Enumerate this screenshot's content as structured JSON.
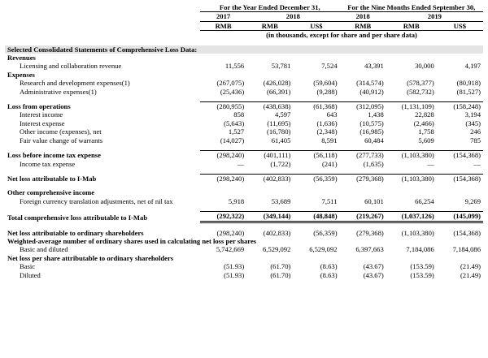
{
  "header": {
    "periods": [
      {
        "title": "For the Year Ended December 31,",
        "years": [
          "2017",
          "2018"
        ],
        "currencies": [
          "RMB",
          "RMB",
          "US$"
        ]
      },
      {
        "title": "For the Nine Months Ended September 30,",
        "years": [
          "2018",
          "2019"
        ],
        "currencies": [
          "RMB",
          "RMB",
          "US$"
        ]
      }
    ],
    "note": "(in thousands, except for share and per share data)"
  },
  "table": {
    "rows": [
      {
        "label": "Selected Consolidated Statements of Comprehensive Loss Data:"
      },
      {
        "label": "Revenues"
      },
      {
        "label": "Licensing and collaboration revenue",
        "values": [
          "11,556",
          "53,781",
          "7,524",
          "43,391",
          "30,000",
          "4,197"
        ]
      },
      {
        "label": "Expenses"
      },
      {
        "label": "Research and development expenses(1)",
        "values": [
          "(267,075)",
          "(426,028)",
          "(59,604)",
          "(314,574)",
          "(578,377)",
          "(80,918)"
        ]
      },
      {
        "label": "Administrative expenses(1)",
        "values": [
          "(25,436)",
          "(66,391)",
          "(9,288)",
          "(40,912)",
          "(582,732)",
          "(81,527)"
        ]
      },
      {
        "label": "Loss from operations",
        "values": [
          "(280,955)",
          "(438,638)",
          "(61,368)",
          "(312,095)",
          "(1,131,109)",
          "(158,248)"
        ]
      },
      {
        "label": "Interest income",
        "values": [
          "858",
          "4,597",
          "643",
          "1,438",
          "22,828",
          "3,194"
        ]
      },
      {
        "label": "Interest expense",
        "values": [
          "(5,643)",
          "(11,695)",
          "(1,636)",
          "(10,575)",
          "(2,466)",
          "(345)"
        ]
      },
      {
        "label": "Other income (expenses), net",
        "values": [
          "1,527",
          "(16,780)",
          "(2,348)",
          "(16,985)",
          "1,758",
          "246"
        ]
      },
      {
        "label": "Fair value change of warrants",
        "values": [
          "(14,027)",
          "61,405",
          "8,591",
          "60,484",
          "5,609",
          "785"
        ]
      },
      {
        "label": "Loss before income tax expense",
        "values": [
          "(298,240)",
          "(401,111)",
          "(56,118)",
          "(277,733)",
          "(1,103,380)",
          "(154,368)"
        ]
      },
      {
        "label": "Income tax expense",
        "values": [
          "—",
          "(1,722)",
          "(241)",
          "(1,635)",
          "—",
          "—"
        ]
      },
      {
        "label": "Net loss attributable to I-Mab",
        "values": [
          "(298,240)",
          "(402,833)",
          "(56,359)",
          "(279,368)",
          "(1,103,380)",
          "(154,368)"
        ]
      },
      {
        "label": "Other comprehensive income"
      },
      {
        "label": "Foreign currency translation adjustments, net of nil tax",
        "values": [
          "5,918",
          "53,689",
          "7,511",
          "60,101",
          "66,254",
          "9,269"
        ]
      },
      {
        "label": "Total comprehensive loss attributable to I-Mab",
        "values": [
          "(292,322)",
          "(349,144)",
          "(48,848)",
          "(219,267)",
          "(1,037,126)",
          "(145,099)"
        ]
      },
      {
        "label": "Net loss attributable to ordinary shareholders",
        "values": [
          "(298,240)",
          "(402,833)",
          "(56,359)",
          "(279,368)",
          "(1,103,380)",
          "(154,368)"
        ]
      },
      {
        "label": "Weighted-average number of ordinary shares used in calculating net loss per shares"
      },
      {
        "label": "Basic and diluted",
        "values": [
          "5,742,669",
          "6,529,092",
          "6,529,092",
          "6,397,663",
          "7,184,086",
          "7,184,086"
        ]
      },
      {
        "label": "Net loss per share attributable to ordinary shareholders"
      },
      {
        "label": "Basic",
        "values": [
          "(51.93)",
          "(61.70)",
          "(8.63)",
          "(43.67)",
          "(153.59)",
          "(21.49)"
        ]
      },
      {
        "label": "Diluted",
        "values": [
          "(51.93)",
          "(61.70)",
          "(8.63)",
          "(43.67)",
          "(153.59)",
          "(21.49)"
        ]
      }
    ]
  }
}
